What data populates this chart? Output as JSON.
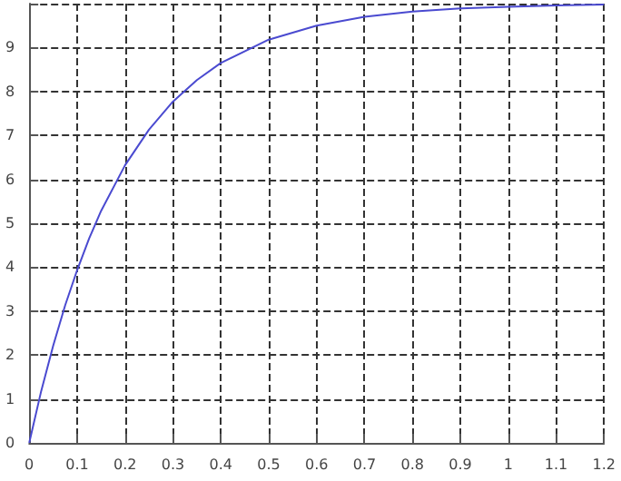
{
  "chart_data": {
    "type": "line",
    "x": [
      0,
      0.025,
      0.05,
      0.075,
      0.1,
      0.125,
      0.15,
      0.2,
      0.25,
      0.3,
      0.35,
      0.4,
      0.5,
      0.6,
      0.7,
      0.8,
      0.9,
      1.0,
      1.1,
      1.2
    ],
    "series": [
      {
        "color": "#4a4ad0",
        "values": [
          0,
          1.18,
          2.21,
          3.13,
          3.93,
          4.65,
          5.28,
          6.32,
          7.13,
          7.77,
          8.26,
          8.65,
          9.18,
          9.5,
          9.7,
          9.82,
          9.89,
          9.93,
          9.96,
          9.98
        ]
      }
    ],
    "xlim": [
      0,
      1.2
    ],
    "xticks": [
      0,
      0.1,
      0.2,
      0.3,
      0.4,
      0.5,
      0.6,
      0.7,
      0.8,
      0.9,
      1,
      1.1,
      1.2
    ],
    "ylim": [
      0,
      10
    ],
    "yticks": [
      0,
      1,
      2,
      3,
      4,
      5,
      6,
      7,
      8,
      9,
      {
        "value": 10,
        "label": null
      }
    ],
    "grid": true,
    "marker": "none",
    "line_style": "solid"
  }
}
